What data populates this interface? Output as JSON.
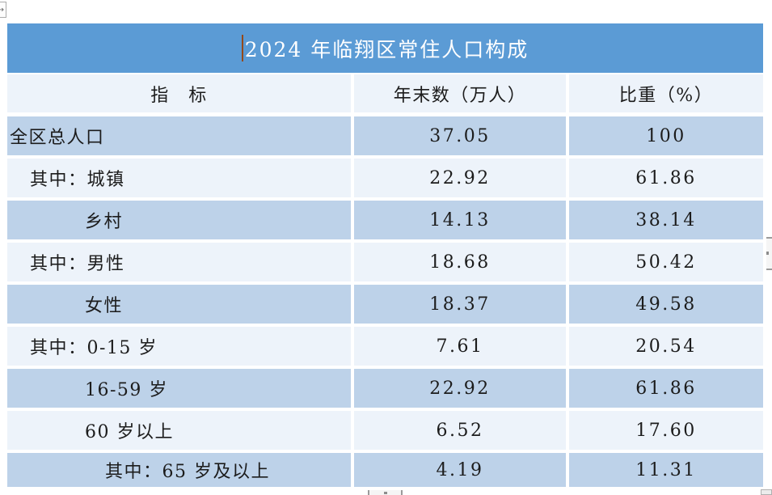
{
  "document": {
    "title": "2024 年临翔区常住人口构成",
    "table": {
      "columns": [
        "指　标",
        "年末数（万人）",
        "比重（%）"
      ],
      "rows": [
        {
          "label": "全区总人口",
          "indent": 0,
          "year_end": "37.05",
          "share": "100"
        },
        {
          "label": "其中：城镇",
          "indent": 1,
          "year_end": "22.92",
          "share": "61.86"
        },
        {
          "label": "乡村",
          "indent": 2,
          "year_end": "14.13",
          "share": "38.14"
        },
        {
          "label": "其中：男性",
          "indent": 1,
          "year_end": "18.68",
          "share": "50.42"
        },
        {
          "label": "女性",
          "indent": 2,
          "year_end": "18.37",
          "share": "49.58"
        },
        {
          "label": "其中：0-15 岁",
          "indent": 1,
          "year_end": "7.61",
          "share": "20.54"
        },
        {
          "label": "16-59 岁",
          "indent": 2,
          "year_end": "22.92",
          "share": "61.86"
        },
        {
          "label": "60 岁以上",
          "indent": 2,
          "year_end": "6.52",
          "share": "17.60"
        },
        {
          "label": "其中：65 岁及以上",
          "indent": 3,
          "year_end": "4.19",
          "share": "11.31"
        }
      ]
    },
    "icons": {
      "move_handle": "→"
    },
    "colors": {
      "title_bar": "#5b9bd5",
      "band_row": "#bdd2e9",
      "light_row": "#edf3fa",
      "title_text": "#ffffff",
      "body_text": "#1c1c1c",
      "text_cursor": "#94491a"
    }
  }
}
